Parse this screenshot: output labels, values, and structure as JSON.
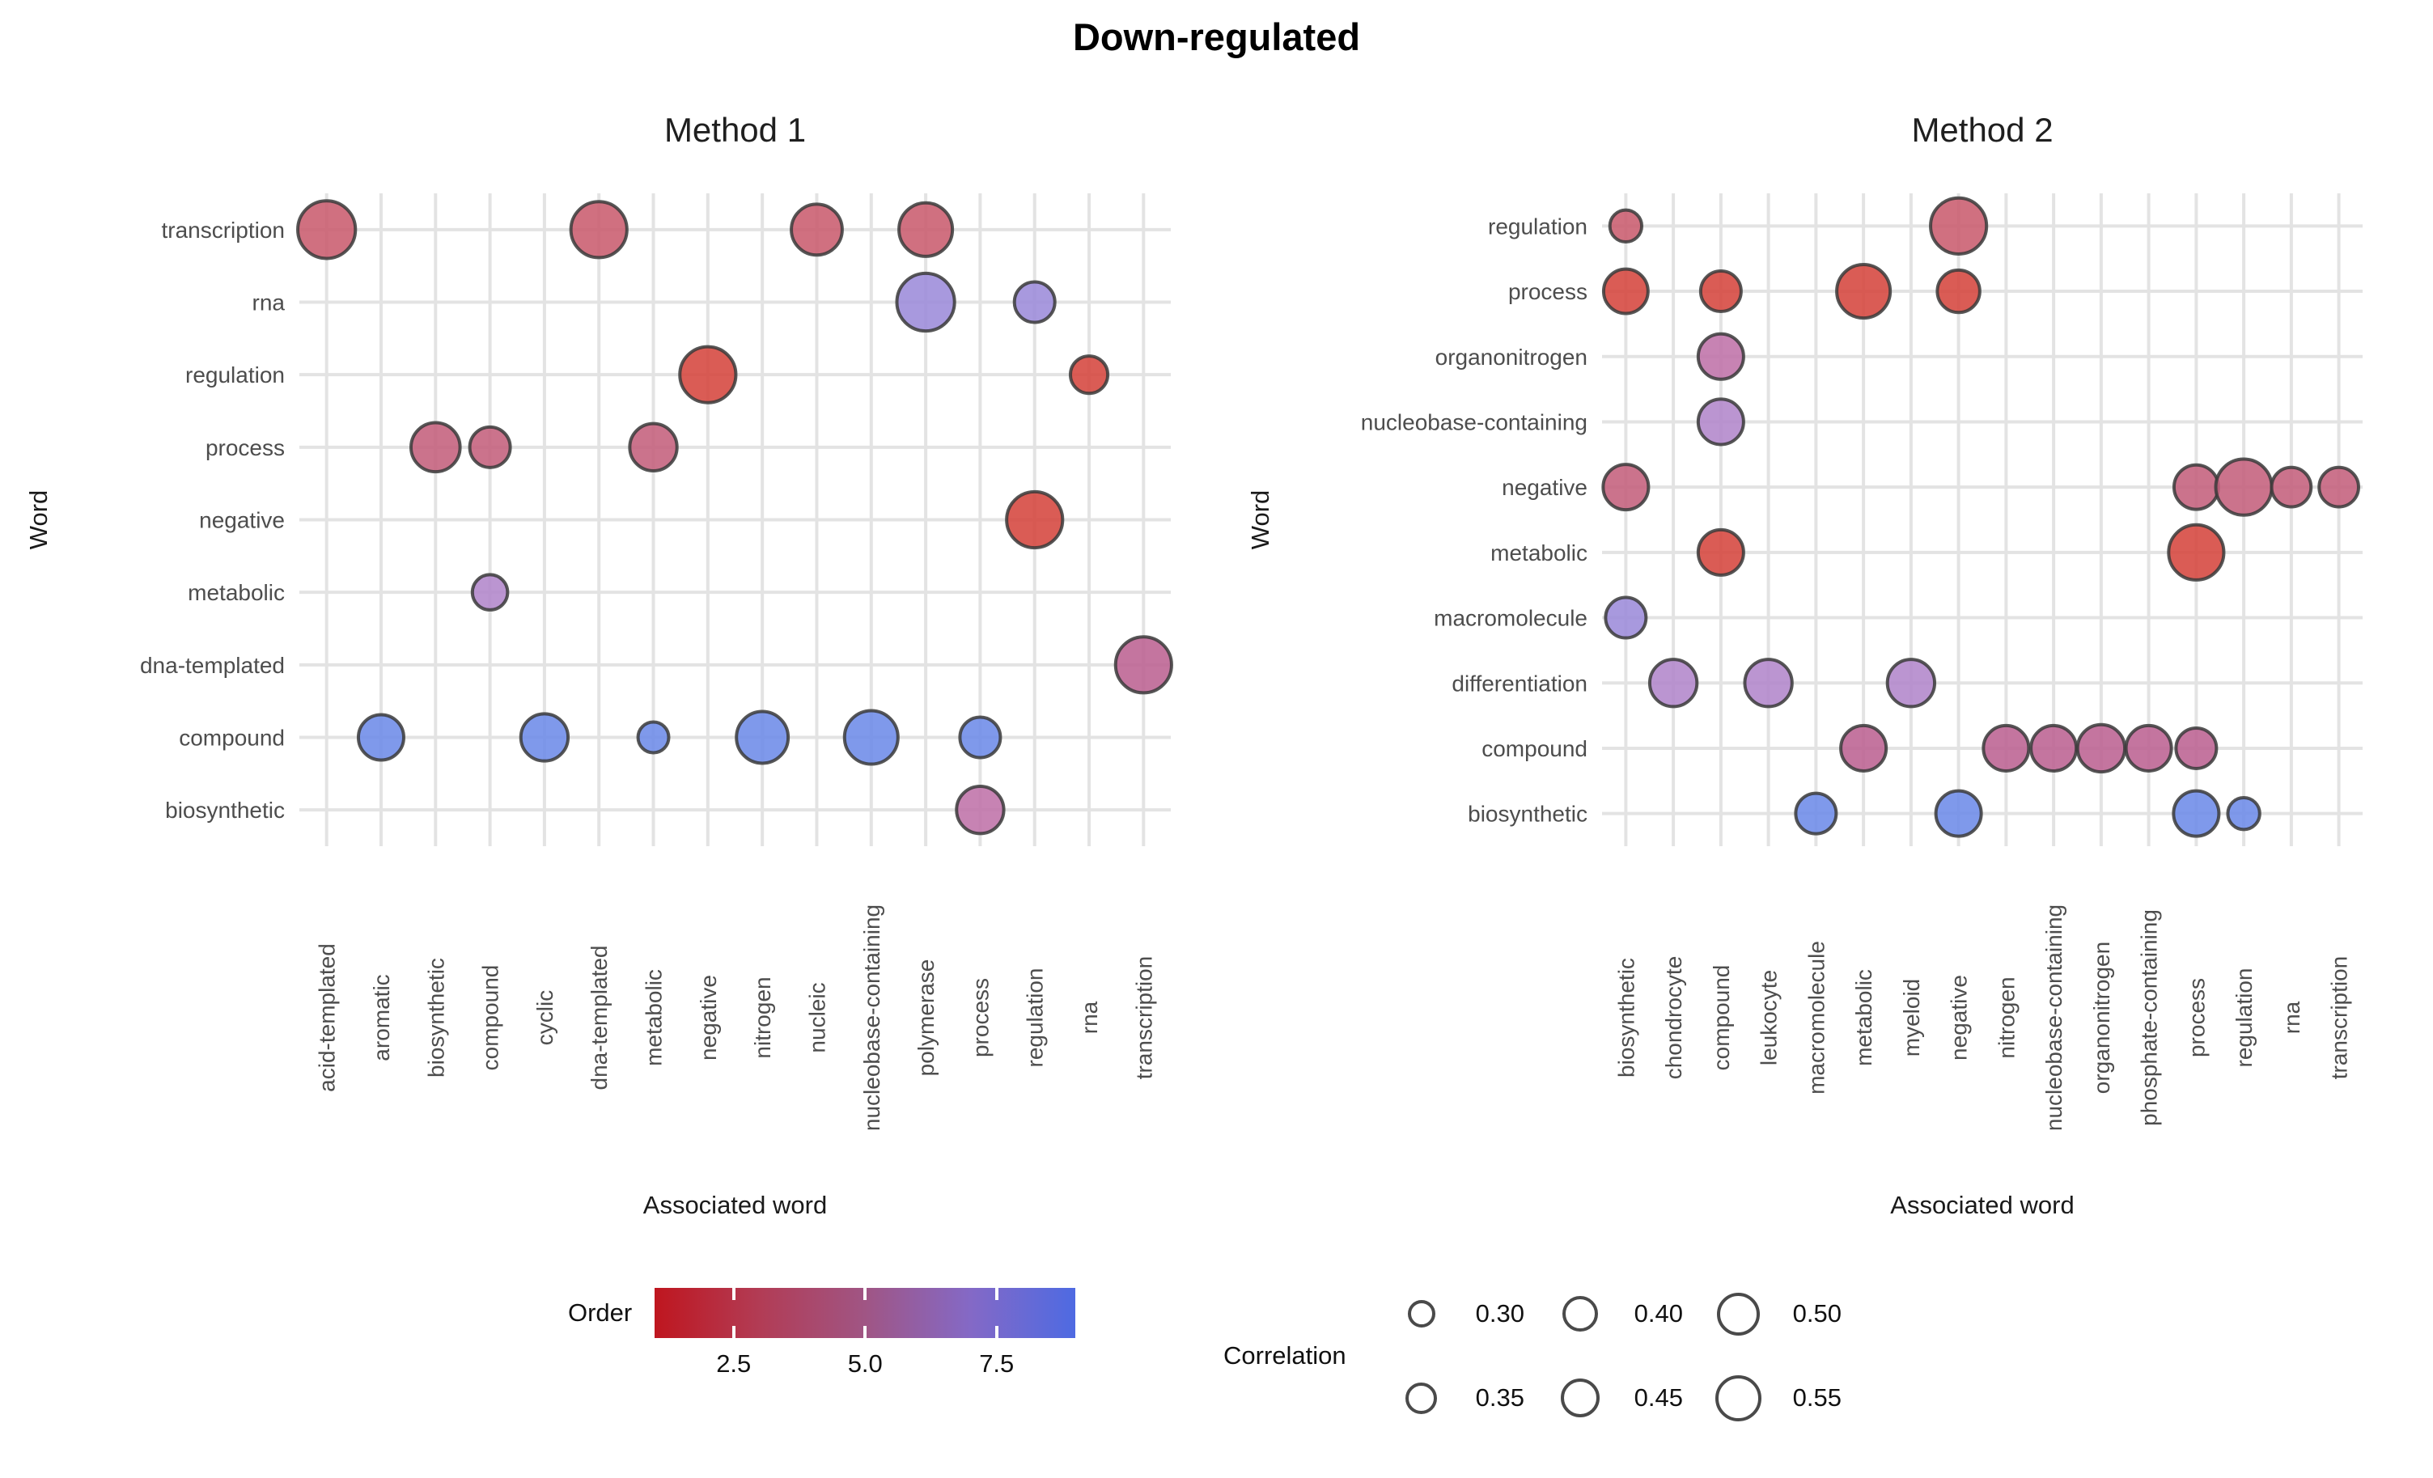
{
  "title": "Down-regulated",
  "chart_data": {
    "type": "bubble-matrix",
    "title": "Down-regulated",
    "color_scale": {
      "label": "Order",
      "limits": [
        1,
        9
      ],
      "ticks": [
        "2.5",
        "5.0",
        "7.5"
      ],
      "stops": [
        "#d5463d",
        "#c95c6e",
        "#c4607c",
        "#bc6292",
        "#bf72a8",
        "#b286cb",
        "#9c8bd9",
        "#858de2",
        "#6d8be8"
      ],
      "bar_gradient": [
        "#bf161f",
        "#b23c55",
        "#a05584",
        "#8469c6",
        "#4e6ae2"
      ]
    },
    "size_scale": {
      "label": "Correlation",
      "values": [
        "0.30",
        "0.35",
        "0.40",
        "0.45",
        "0.50",
        "0.55"
      ]
    },
    "panels": [
      {
        "title": "Method 1",
        "xlabel": "Associated word",
        "ylabel": "Word",
        "rows": [
          "transcription",
          "rna",
          "regulation",
          "process",
          "negative",
          "metabolic",
          "dna-templated",
          "compound",
          "biosynthetic"
        ],
        "cols": [
          "acid-templated",
          "aromatic",
          "biosynthetic",
          "compound",
          "cyclic",
          "dna-templated",
          "metabolic",
          "negative",
          "nitrogen",
          "nucleic",
          "nucleobase-containing",
          "polymerase",
          "process",
          "regulation",
          "rna",
          "transcription"
        ],
        "points": [
          {
            "word": "transcription",
            "assoc": "acid-templated",
            "order": 2,
            "correlation": 0.55
          },
          {
            "word": "transcription",
            "assoc": "dna-templated",
            "order": 2,
            "correlation": 0.53
          },
          {
            "word": "transcription",
            "assoc": "nucleic",
            "order": 2,
            "correlation": 0.47
          },
          {
            "word": "transcription",
            "assoc": "polymerase",
            "order": 2,
            "correlation": 0.5
          },
          {
            "word": "rna",
            "assoc": "polymerase",
            "order": 7,
            "correlation": 0.55
          },
          {
            "word": "rna",
            "assoc": "regulation",
            "order": 7,
            "correlation": 0.36
          },
          {
            "word": "regulation",
            "assoc": "negative",
            "order": 1,
            "correlation": 0.53
          },
          {
            "word": "regulation",
            "assoc": "rna",
            "order": 1,
            "correlation": 0.33
          },
          {
            "word": "process",
            "assoc": "biosynthetic",
            "order": 3,
            "correlation": 0.45
          },
          {
            "word": "process",
            "assoc": "compound",
            "order": 3,
            "correlation": 0.36
          },
          {
            "word": "process",
            "assoc": "metabolic",
            "order": 3,
            "correlation": 0.43
          },
          {
            "word": "negative",
            "assoc": "regulation",
            "order": 1,
            "correlation": 0.53
          },
          {
            "word": "metabolic",
            "assoc": "compound",
            "order": 6,
            "correlation": 0.31
          },
          {
            "word": "dna-templated",
            "assoc": "transcription",
            "order": 4,
            "correlation": 0.53
          },
          {
            "word": "compound",
            "assoc": "aromatic",
            "order": 9,
            "correlation": 0.41
          },
          {
            "word": "compound",
            "assoc": "cyclic",
            "order": 9,
            "correlation": 0.43
          },
          {
            "word": "compound",
            "assoc": "metabolic",
            "order": 9,
            "correlation": 0.27
          },
          {
            "word": "compound",
            "assoc": "nitrogen",
            "order": 9,
            "correlation": 0.48
          },
          {
            "word": "compound",
            "assoc": "nucleobase-containing",
            "order": 9,
            "correlation": 0.5
          },
          {
            "word": "compound",
            "assoc": "process",
            "order": 9,
            "correlation": 0.36
          },
          {
            "word": "biosynthetic",
            "assoc": "process",
            "order": 5,
            "correlation": 0.43
          }
        ]
      },
      {
        "title": "Method 2",
        "xlabel": "Associated word",
        "ylabel": "Word",
        "rows": [
          "regulation",
          "process",
          "organonitrogen",
          "nucleobase-containing",
          "negative",
          "metabolic",
          "macromolecule",
          "differentiation",
          "compound",
          "biosynthetic"
        ],
        "cols": [
          "biosynthetic",
          "chondrocyte",
          "compound",
          "leukocyte",
          "macromolecule",
          "metabolic",
          "myeloid",
          "negative",
          "nitrogen",
          "nucleobase-containing",
          "organonitrogen",
          "phosphate-containing",
          "process",
          "regulation",
          "rna",
          "transcription"
        ],
        "points": [
          {
            "word": "regulation",
            "assoc": "biosynthetic",
            "order": 2,
            "correlation": 0.28
          },
          {
            "word": "regulation",
            "assoc": "negative",
            "order": 2,
            "correlation": 0.53
          },
          {
            "word": "process",
            "assoc": "biosynthetic",
            "order": 1,
            "correlation": 0.4
          },
          {
            "word": "process",
            "assoc": "compound",
            "order": 1,
            "correlation": 0.36
          },
          {
            "word": "process",
            "assoc": "metabolic",
            "order": 1,
            "correlation": 0.5
          },
          {
            "word": "process",
            "assoc": "negative",
            "order": 1,
            "correlation": 0.38
          },
          {
            "word": "organonitrogen",
            "assoc": "compound",
            "order": 5,
            "correlation": 0.41
          },
          {
            "word": "nucleobase-containing",
            "assoc": "compound",
            "order": 6,
            "correlation": 0.41
          },
          {
            "word": "negative",
            "assoc": "biosynthetic",
            "order": 3,
            "correlation": 0.41
          },
          {
            "word": "negative",
            "assoc": "process",
            "order": 3,
            "correlation": 0.4
          },
          {
            "word": "negative",
            "assoc": "regulation",
            "order": 3,
            "correlation": 0.53
          },
          {
            "word": "negative",
            "assoc": "rna",
            "order": 3,
            "correlation": 0.35
          },
          {
            "word": "negative",
            "assoc": "transcription",
            "order": 3,
            "correlation": 0.35
          },
          {
            "word": "metabolic",
            "assoc": "compound",
            "order": 1,
            "correlation": 0.41
          },
          {
            "word": "metabolic",
            "assoc": "process",
            "order": 1,
            "correlation": 0.52
          },
          {
            "word": "macromolecule",
            "assoc": "biosynthetic",
            "order": 7,
            "correlation": 0.36
          },
          {
            "word": "differentiation",
            "assoc": "chondrocyte",
            "order": 6,
            "correlation": 0.43
          },
          {
            "word": "differentiation",
            "assoc": "leukocyte",
            "order": 6,
            "correlation": 0.43
          },
          {
            "word": "differentiation",
            "assoc": "myeloid",
            "order": 6,
            "correlation": 0.43
          },
          {
            "word": "compound",
            "assoc": "metabolic",
            "order": 4,
            "correlation": 0.41
          },
          {
            "word": "compound",
            "assoc": "nitrogen",
            "order": 4,
            "correlation": 0.41
          },
          {
            "word": "compound",
            "assoc": "nucleobase-containing",
            "order": 4,
            "correlation": 0.41
          },
          {
            "word": "compound",
            "assoc": "organonitrogen",
            "order": 4,
            "correlation": 0.43
          },
          {
            "word": "compound",
            "assoc": "phosphate-containing",
            "order": 4,
            "correlation": 0.41
          },
          {
            "word": "compound",
            "assoc": "process",
            "order": 4,
            "correlation": 0.36
          },
          {
            "word": "biosynthetic",
            "assoc": "macromolecule",
            "order": 9,
            "correlation": 0.36
          },
          {
            "word": "biosynthetic",
            "assoc": "negative",
            "order": 9,
            "correlation": 0.41
          },
          {
            "word": "biosynthetic",
            "assoc": "process",
            "order": 9,
            "correlation": 0.41
          },
          {
            "word": "biosynthetic",
            "assoc": "regulation",
            "order": 9,
            "correlation": 0.28
          }
        ]
      }
    ]
  }
}
